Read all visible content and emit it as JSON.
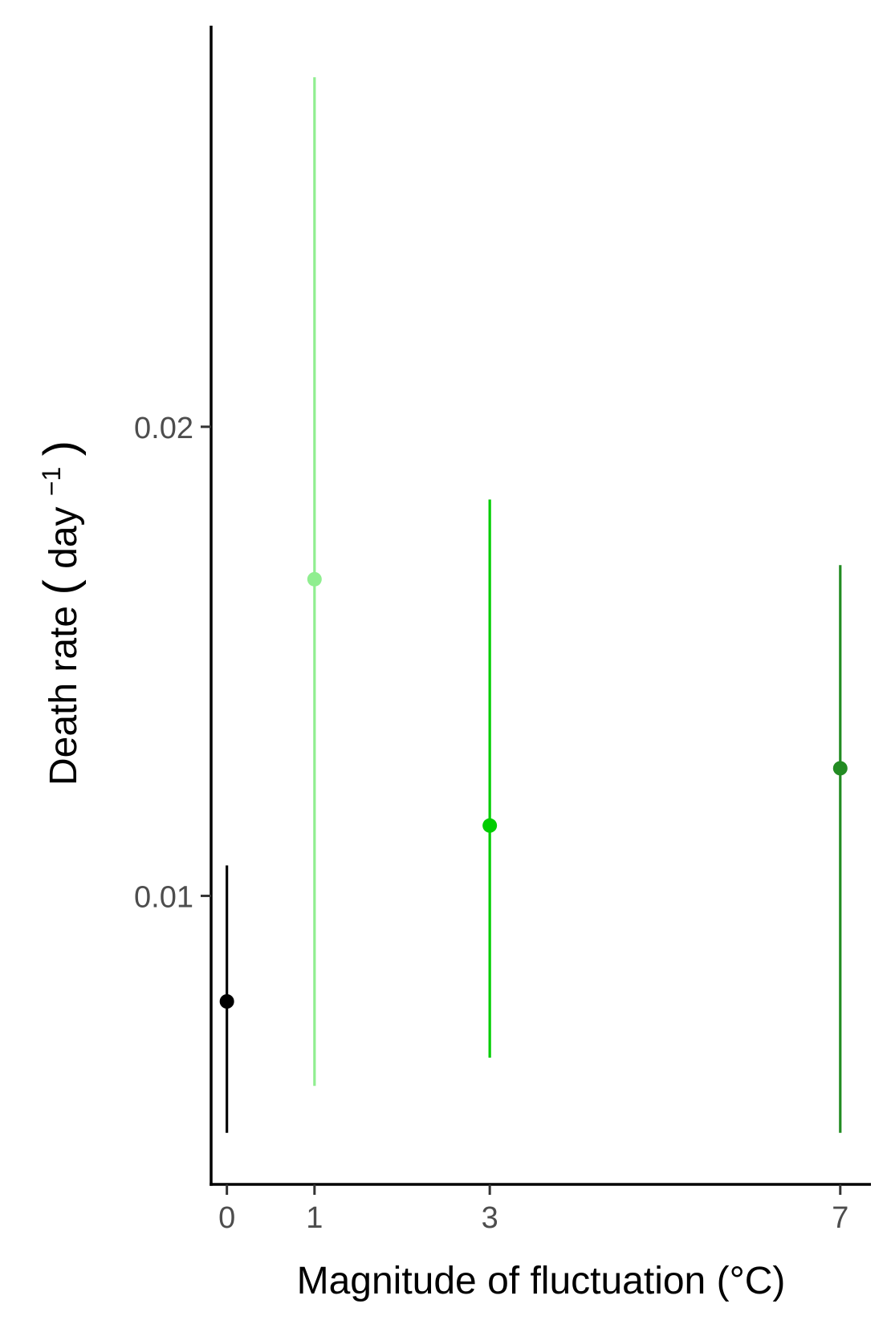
{
  "chart_data": {
    "type": "scatter",
    "xlabel": "Magnitude of fluctuation (°C)",
    "ylabel": "Death rate (day⁻¹)",
    "ylabel_main": "Death rate",
    "ylabel_unit": "day",
    "ylabel_exp": "−1",
    "x_ticks": [
      0,
      1,
      3,
      7
    ],
    "y_ticks": [
      0.01,
      0.02
    ],
    "y_tick_labels": [
      "0.01",
      "0.02"
    ],
    "xlim": [
      -0.18,
      7.35
    ],
    "ylim": [
      0.00385,
      0.02855
    ],
    "grid": false,
    "legend": "none",
    "points": [
      {
        "x": 0,
        "y": 0.00775,
        "ymin": 0.00495,
        "ymax": 0.01065,
        "color": "#000000"
      },
      {
        "x": 1,
        "y": 0.01675,
        "ymin": 0.00595,
        "ymax": 0.02745,
        "color": "#90ee90"
      },
      {
        "x": 3,
        "y": 0.0115,
        "ymin": 0.00655,
        "ymax": 0.01845,
        "color": "#00cd00"
      },
      {
        "x": 7,
        "y": 0.01272,
        "ymin": 0.00495,
        "ymax": 0.01705,
        "color": "#228b22"
      }
    ]
  }
}
